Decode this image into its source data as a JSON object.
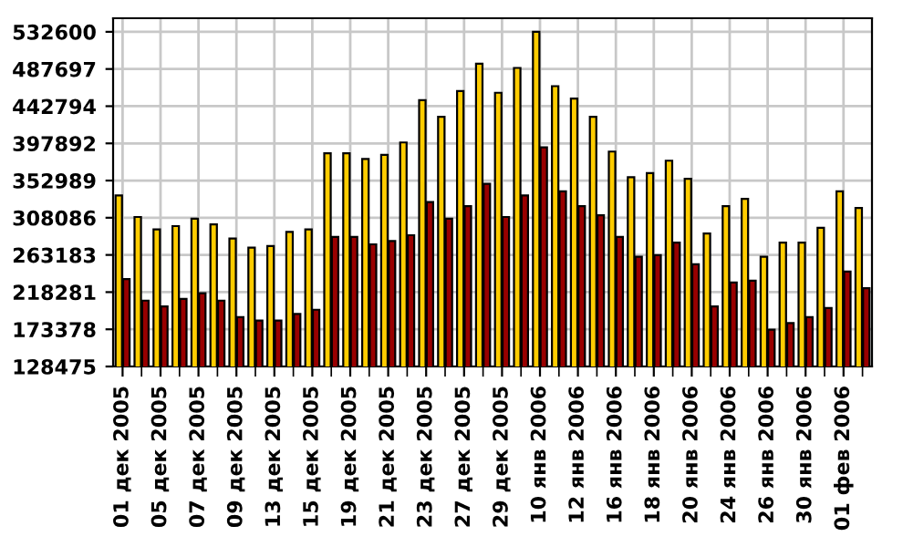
{
  "chart_data": {
    "type": "bar",
    "categories": [
      "01 дек 2005",
      null,
      "05 дек 2005",
      null,
      "07 дек 2005",
      null,
      "09 дек 2005",
      null,
      "13 дек 2005",
      null,
      "15 дек 2005",
      null,
      "19 дек 2005",
      null,
      "21 дек 2005",
      null,
      "23 дек 2005",
      null,
      "27 дек 2005",
      null,
      "29 дек 2005",
      null,
      "10 янв 2006",
      null,
      "12 янв 2006",
      null,
      "16 янв 2006",
      null,
      "18 янв 2006",
      null,
      "20 янв 2006",
      null,
      "24 янв 2006",
      null,
      "26 янв 2006",
      null,
      "30 янв 2006",
      null,
      "01 фев 2006",
      null
    ],
    "series": [
      {
        "color": "#ffcc00",
        "values": [
          335000,
          309000,
          294000,
          298000,
          307000,
          300000,
          283000,
          272000,
          274000,
          291000,
          294000,
          386000,
          386000,
          379000,
          384000,
          399000,
          450000,
          430000,
          461000,
          494000,
          459000,
          489000,
          532600,
          467000,
          452000,
          430000,
          388000,
          357000,
          362000,
          377000,
          355000,
          289000,
          322000,
          331000,
          261000,
          278000,
          278000,
          296000,
          340000,
          320000
        ]
      },
      {
        "color": "#990000",
        "values": [
          234000,
          208000,
          201000,
          210000,
          217000,
          208000,
          188000,
          184000,
          184000,
          192000,
          197000,
          285000,
          285000,
          276000,
          280000,
          287000,
          327000,
          307000,
          322000,
          349000,
          309000,
          335000,
          393000,
          340000,
          322000,
          311000,
          285000,
          261000,
          263000,
          278000,
          252000,
          201000,
          230000,
          232000,
          173000,
          181000,
          188000,
          199000,
          243000,
          223000
        ]
      }
    ],
    "ylim": [
      128475,
      549000
    ],
    "yticks": [
      128475,
      173378,
      218281,
      263183,
      308086,
      352989,
      397892,
      442794,
      487697,
      532600
    ],
    "grid": true
  }
}
